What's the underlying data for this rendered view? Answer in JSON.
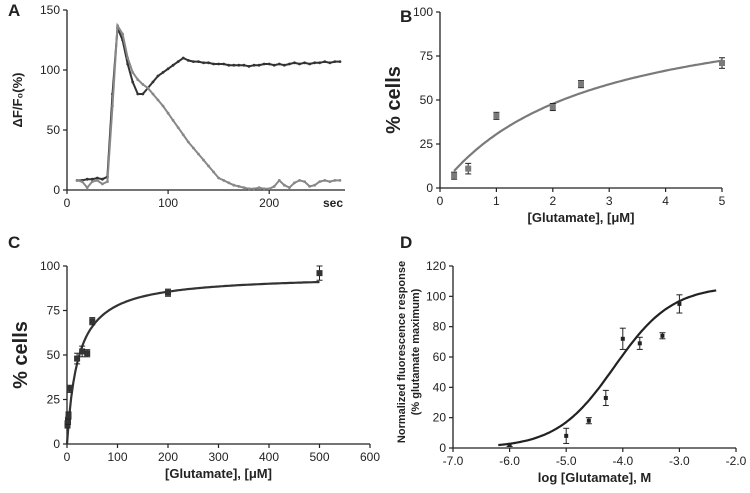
{
  "chart_data": [
    {
      "panel": "A",
      "type": "line",
      "ylabel": "ΔF/F₀(%)",
      "xunit": "sec",
      "xlim": [
        0,
        275
      ],
      "ylim": [
        0,
        150
      ],
      "xticks": [
        0,
        100,
        200
      ],
      "yticks": [
        0,
        50,
        100,
        150
      ],
      "grid": false,
      "series": [
        {
          "color": "#333333",
          "x": [
            10,
            15,
            20,
            25,
            30,
            35,
            40,
            45,
            50,
            55,
            60,
            65,
            70,
            75,
            80,
            85,
            90,
            95,
            100,
            105,
            110,
            115,
            120,
            125,
            130,
            135,
            140,
            145,
            150,
            155,
            160,
            165,
            170,
            175,
            180,
            185,
            190,
            195,
            200,
            205,
            210,
            215,
            220,
            225,
            230,
            235,
            240,
            245,
            250,
            255,
            260,
            265,
            270
          ],
          "y": [
            8,
            8,
            9,
            9,
            10,
            9,
            11,
            80,
            135,
            125,
            105,
            90,
            80,
            80,
            85,
            90,
            95,
            98,
            101,
            104,
            107,
            110,
            108,
            107,
            107,
            106,
            106,
            105,
            105,
            105,
            104,
            104,
            104,
            104,
            103,
            104,
            104,
            105,
            105,
            104,
            105,
            104,
            105,
            106,
            105,
            106,
            105,
            106,
            106,
            107,
            106,
            107,
            107
          ]
        },
        {
          "color": "#888888",
          "x": [
            10,
            15,
            20,
            25,
            30,
            35,
            40,
            45,
            50,
            55,
            60,
            65,
            70,
            75,
            80,
            85,
            90,
            95,
            100,
            105,
            110,
            115,
            120,
            125,
            130,
            135,
            140,
            145,
            150,
            155,
            160,
            165,
            170,
            175,
            180,
            185,
            190,
            195,
            200,
            205,
            210,
            215,
            220,
            225,
            230,
            235,
            240,
            245,
            250,
            255,
            260,
            265,
            270
          ],
          "y": [
            8,
            7,
            2,
            7,
            8,
            5,
            7,
            70,
            137,
            130,
            110,
            98,
            92,
            88,
            85,
            80,
            75,
            70,
            64,
            58,
            52,
            46,
            40,
            35,
            30,
            25,
            20,
            15,
            10,
            8,
            6,
            4,
            3,
            2,
            1,
            1,
            2,
            1,
            1,
            3,
            8,
            4,
            2,
            6,
            8,
            7,
            3,
            4,
            7,
            8,
            7,
            8,
            8
          ]
        }
      ]
    },
    {
      "panel": "B",
      "type": "scatter",
      "xlabel": "[Glutamate], [μM]",
      "ylabel": "% cells",
      "xlim": [
        0,
        5
      ],
      "ylim": [
        0,
        100
      ],
      "xticks": [
        0,
        1,
        2,
        3,
        4,
        5
      ],
      "yticks": [
        0,
        25,
        50,
        75,
        100
      ],
      "fit": "hyperbolic",
      "color": "#7a7a7a",
      "points": [
        {
          "x": 0.25,
          "y": 7,
          "err": 2
        },
        {
          "x": 0.5,
          "y": 11,
          "err": 3
        },
        {
          "x": 1.0,
          "y": 41,
          "err": 2
        },
        {
          "x": 2.0,
          "y": 46,
          "err": 2
        },
        {
          "x": 2.5,
          "y": 59,
          "err": 2
        },
        {
          "x": 5.0,
          "y": 71,
          "err": 3
        }
      ]
    },
    {
      "panel": "C",
      "type": "scatter",
      "xlabel": "[Glutamate], [μM]",
      "ylabel": "% cells",
      "xlim": [
        0,
        600
      ],
      "ylim": [
        0,
        100
      ],
      "xticks": [
        0,
        100,
        200,
        300,
        400,
        500,
        600
      ],
      "yticks": [
        0,
        25,
        50,
        75,
        100
      ],
      "fit": "hyperbolic",
      "color": "#333333",
      "points": [
        {
          "x": 1,
          "y": 11,
          "err": 2
        },
        {
          "x": 2,
          "y": 13,
          "err": 2
        },
        {
          "x": 3,
          "y": 16,
          "err": 2
        },
        {
          "x": 5,
          "y": 31,
          "err": 2
        },
        {
          "x": 20,
          "y": 48,
          "err": 3
        },
        {
          "x": 30,
          "y": 52,
          "err": 3
        },
        {
          "x": 40,
          "y": 51,
          "err": 2
        },
        {
          "x": 50,
          "y": 69,
          "err": 2
        },
        {
          "x": 200,
          "y": 85,
          "err": 2
        },
        {
          "x": 500,
          "y": 96,
          "err": 4
        }
      ]
    },
    {
      "panel": "D",
      "type": "scatter",
      "xlabel": "log [Glutamate], M",
      "ylabel": "Normalized fluorescence response",
      "ylabel2": "(% glutamate maximum)",
      "xlim": [
        -7,
        -2
      ],
      "ylim": [
        0,
        120
      ],
      "xticks": [
        -7,
        -6,
        -5,
        -4,
        -3,
        -2
      ],
      "xticklabels": [
        "-7.0",
        "-6.0",
        "-5.0",
        "-4.0",
        "-3.0",
        "-2.0"
      ],
      "yticks": [
        0,
        20,
        40,
        60,
        80,
        100,
        120
      ],
      "fit": "sigmoid",
      "color": "#222222",
      "points": [
        {
          "x": -6.0,
          "y": 2,
          "err": 1
        },
        {
          "x": -5.0,
          "y": 8,
          "err": 5
        },
        {
          "x": -4.6,
          "y": 18,
          "err": 2
        },
        {
          "x": -4.3,
          "y": 33,
          "err": 5
        },
        {
          "x": -4.0,
          "y": 72,
          "err": 7
        },
        {
          "x": -3.7,
          "y": 69,
          "err": 4
        },
        {
          "x": -3.3,
          "y": 74,
          "err": 2
        },
        {
          "x": -3.0,
          "y": 95,
          "err": 6
        }
      ]
    }
  ],
  "labels": {
    "panels": [
      "A",
      "B",
      "C",
      "D"
    ]
  }
}
